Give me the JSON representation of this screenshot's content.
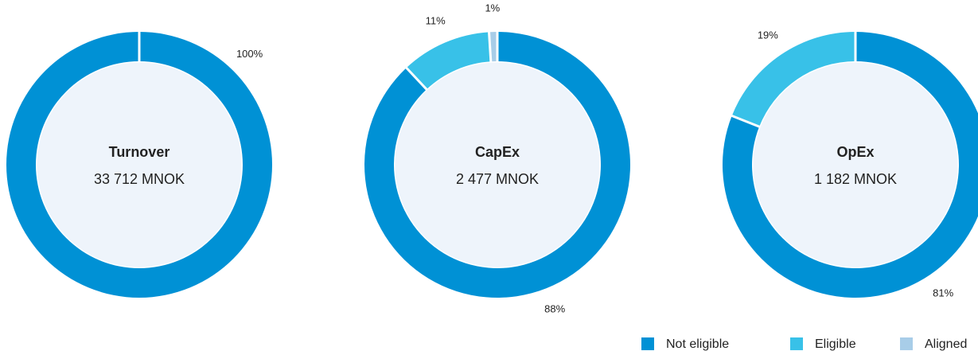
{
  "chart_data": [
    {
      "type": "pie",
      "title": "Turnover",
      "subtitle": "33 712 MNOK",
      "values": [
        100
      ],
      "value_labels": [
        "100%"
      ]
    },
    {
      "type": "pie",
      "title": "CapEx",
      "subtitle": "2 477 MNOK",
      "values": [
        88,
        11,
        1
      ],
      "value_labels": [
        "88%",
        "11%",
        "1%"
      ]
    },
    {
      "type": "pie",
      "title": "OpEx",
      "subtitle": "1 182 MNOK",
      "values": [
        81,
        19
      ],
      "value_labels": [
        "81%",
        "19%"
      ]
    }
  ],
  "legend": {
    "labels": [
      "Not eligible",
      "Eligible",
      "Aligned"
    ],
    "colors": [
      "#0091d5",
      "#38c1e8",
      "#a8cde8"
    ]
  }
}
